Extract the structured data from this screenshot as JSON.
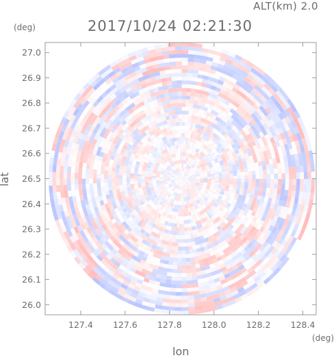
{
  "chart_data": {
    "type": "heatmap",
    "title": "2017/10/24 02:21:30",
    "subtitle": "ALT(km) 2.0",
    "xlabel": "lon",
    "ylabel": "lat",
    "x_unit": "(deg)",
    "y_unit": "(deg)",
    "xlim": [
      127.24,
      128.46
    ],
    "ylim": [
      25.96,
      27.04
    ],
    "x_ticks": [
      127.4,
      127.6,
      127.8,
      128.0,
      128.2,
      128.4
    ],
    "x_tick_labels": [
      "127.4",
      "127.6",
      "127.8",
      "128.0",
      "128.2",
      "128.4"
    ],
    "y_ticks": [
      26.0,
      26.1,
      26.2,
      26.3,
      26.4,
      26.5,
      26.6,
      26.7,
      26.8,
      26.9,
      27.0
    ],
    "y_tick_labels": [
      "26.0",
      "26.1",
      "26.2",
      "26.3",
      "26.4",
      "26.5",
      "26.6",
      "26.7",
      "26.8",
      "26.9",
      "27.0"
    ],
    "radar_center": {
      "lon": 127.855,
      "lat": 26.5
    },
    "radar_radius_deg": {
      "lon": 0.6,
      "lat": 0.54
    },
    "colormap": {
      "negative": "#b8c4ff",
      "neutral": "#ffffff",
      "positive": "#ffbcbc"
    },
    "grid": false
  }
}
